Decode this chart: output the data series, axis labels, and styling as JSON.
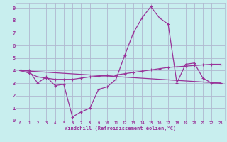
{
  "xlabel": "Windchill (Refroidissement éolien,°C)",
  "background_color": "#c8eeee",
  "grid_color": "#b0b8d0",
  "line_color": "#993399",
  "xlim": [
    -0.5,
    23.5
  ],
  "ylim": [
    0,
    9.4
  ],
  "xticks": [
    0,
    1,
    2,
    3,
    4,
    5,
    6,
    7,
    8,
    9,
    10,
    11,
    12,
    13,
    14,
    15,
    16,
    17,
    18,
    19,
    20,
    21,
    22,
    23
  ],
  "yticks": [
    0,
    1,
    2,
    3,
    4,
    5,
    6,
    7,
    8,
    9
  ],
  "line1_x": [
    0,
    1,
    2,
    3,
    4,
    5,
    6,
    7,
    8,
    9,
    10,
    11,
    12,
    13,
    14,
    15,
    16,
    17,
    18,
    19,
    20,
    21,
    22,
    23
  ],
  "line1_y": [
    4.0,
    4.0,
    3.0,
    3.5,
    2.8,
    2.9,
    0.3,
    0.7,
    1.0,
    2.5,
    2.7,
    3.3,
    5.2,
    7.0,
    8.2,
    9.1,
    8.2,
    7.7,
    3.0,
    4.5,
    4.6,
    3.4,
    3.0,
    3.0
  ],
  "line2_x": [
    0,
    1,
    2,
    3,
    4,
    5,
    6,
    7,
    8,
    9,
    10,
    11,
    12,
    13,
    14,
    15,
    16,
    17,
    18,
    19,
    20,
    21,
    22,
    23
  ],
  "line2_y": [
    4.0,
    3.8,
    3.5,
    3.4,
    3.3,
    3.3,
    3.3,
    3.4,
    3.5,
    3.55,
    3.6,
    3.65,
    3.75,
    3.85,
    3.95,
    4.05,
    4.15,
    4.25,
    4.3,
    4.35,
    4.4,
    4.45,
    4.5,
    4.5
  ],
  "line3_x": [
    0,
    23
  ],
  "line3_y": [
    4.0,
    3.0
  ]
}
